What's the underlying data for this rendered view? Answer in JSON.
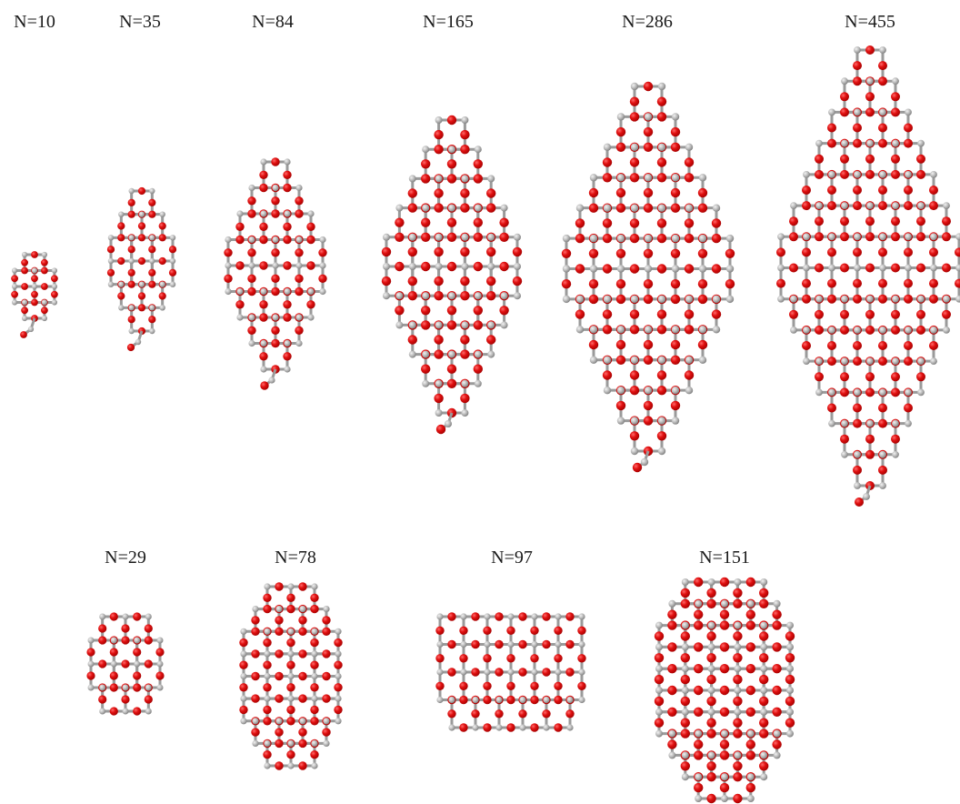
{
  "figure": {
    "colors": {
      "oxygen": "#e01010",
      "oxygen_shade": "#a40000",
      "silicon": "#bdbdbd",
      "silicon_shade": "#7d7d7d",
      "bond": "#9a9a9a"
    },
    "clusters": [
      {
        "id": "n10",
        "label": "N=10",
        "shape": "small",
        "rows": [
          1,
          2,
          2,
          1
        ],
        "tail": true
      },
      {
        "id": "n35",
        "label": "N=35",
        "shape": "diamond",
        "rows": [
          1,
          2,
          3,
          3,
          2,
          1
        ],
        "tail": true
      },
      {
        "id": "n84",
        "label": "N=84",
        "shape": "diamond",
        "rows": [
          1,
          2,
          3,
          4,
          4,
          3,
          2,
          1
        ],
        "tail": true
      },
      {
        "id": "n165",
        "label": "N=165",
        "shape": "diamond",
        "rows": [
          1,
          2,
          3,
          4,
          5,
          5,
          4,
          3,
          2,
          1
        ],
        "tail": true
      },
      {
        "id": "n286",
        "label": "N=286",
        "shape": "diamond",
        "rows": [
          1,
          2,
          3,
          4,
          5,
          6,
          6,
          5,
          4,
          3,
          2,
          1
        ],
        "tail": true
      },
      {
        "id": "n455",
        "label": "N=455",
        "shape": "diamond",
        "rows": [
          1,
          2,
          3,
          4,
          5,
          6,
          7,
          7,
          6,
          5,
          4,
          3,
          2,
          1
        ],
        "tail": true
      },
      {
        "id": "n29",
        "label": "N=29",
        "shape": "compact",
        "rows": [
          2,
          3,
          3,
          2
        ],
        "tail": false
      },
      {
        "id": "n78",
        "label": "N=78",
        "shape": "rounded",
        "rows": [
          2,
          3,
          4,
          4,
          4,
          4,
          3,
          2
        ],
        "tail": false
      },
      {
        "id": "n97",
        "label": "N=97",
        "shape": "slab",
        "rows": [
          6,
          6,
          6,
          5
        ],
        "tail": false
      },
      {
        "id": "n151",
        "label": "N=151",
        "shape": "rounded",
        "rows": [
          3,
          4,
          5,
          5,
          5,
          5,
          5,
          4,
          3,
          2
        ],
        "tail": false
      }
    ]
  }
}
